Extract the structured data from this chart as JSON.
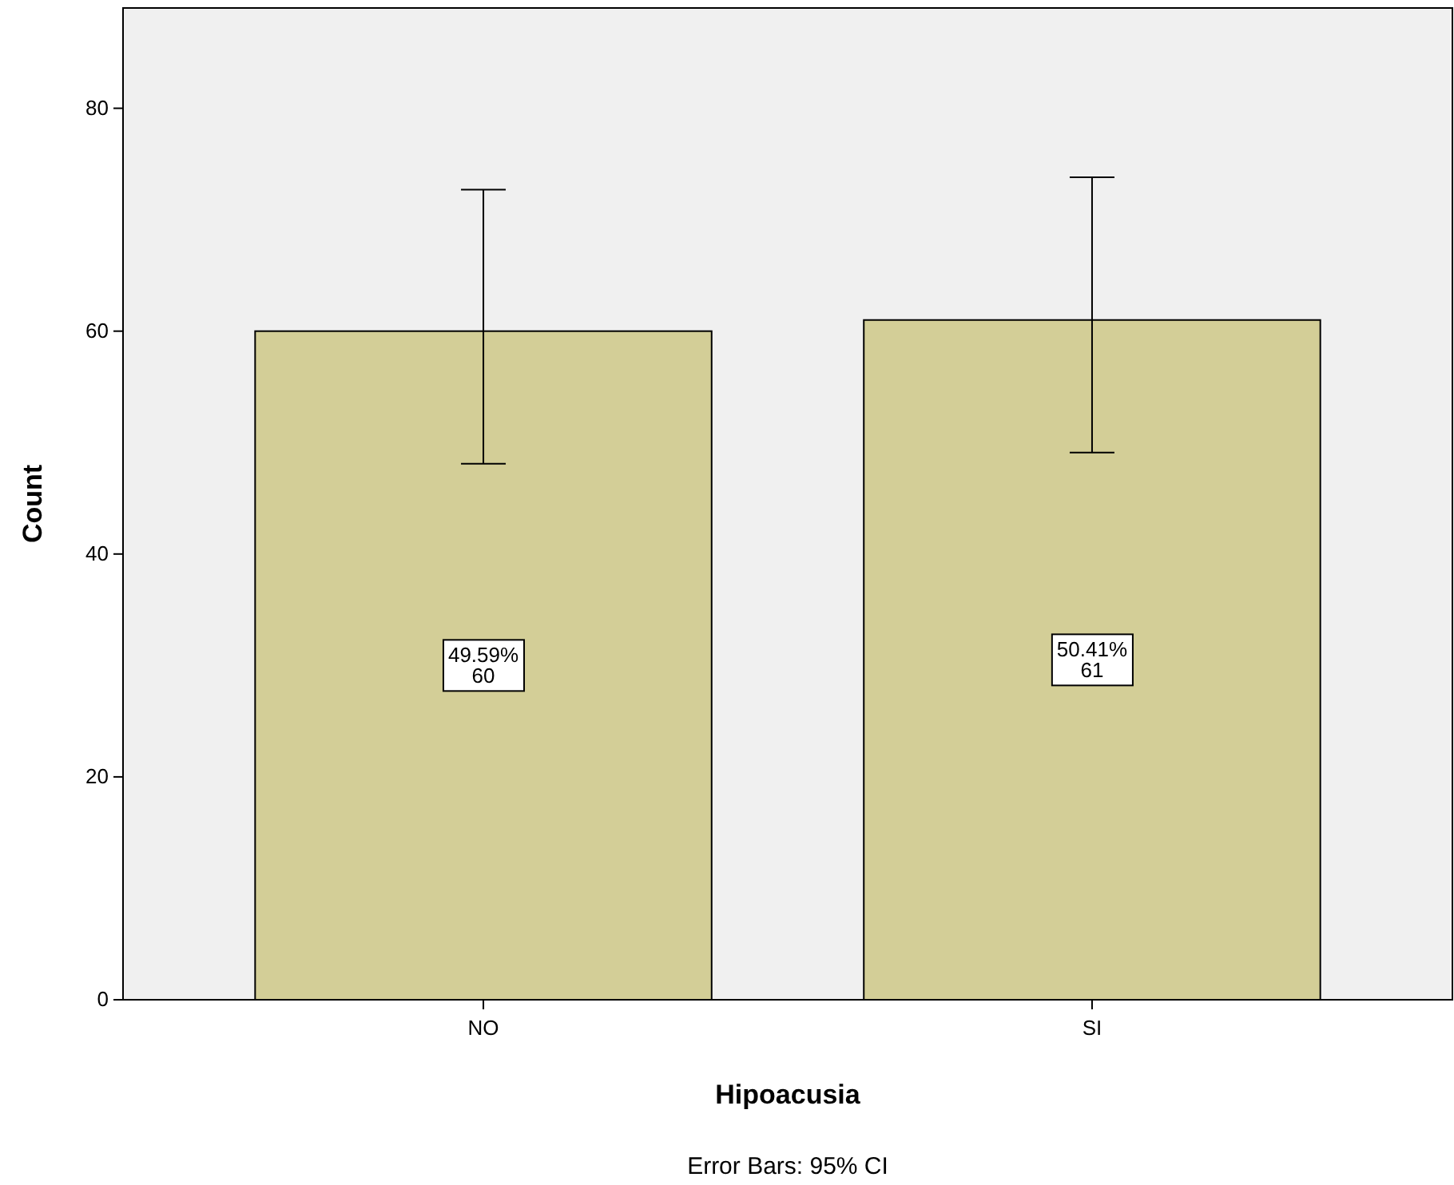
{
  "chart_data": {
    "type": "bar",
    "categories": [
      "NO",
      "SI"
    ],
    "values": [
      60,
      61
    ],
    "color": "#d3ce97",
    "errors": [
      [
        48.1,
        72.7
      ],
      [
        49.1,
        73.8
      ]
    ],
    "value_labels": [
      "49.59%\n60",
      "50.41%\n61"
    ],
    "xlabel": "Hipoacusia",
    "ylabel": "Count",
    "ylim": [
      0,
      89
    ],
    "yticks": [
      0,
      20,
      40,
      60,
      80
    ],
    "grid": false,
    "annotations": [
      "Error Bars: 95% CI"
    ]
  }
}
